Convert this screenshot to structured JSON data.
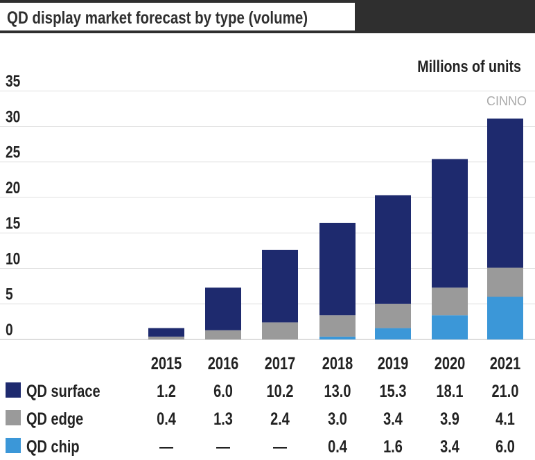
{
  "chart_data": {
    "type": "bar",
    "stacked": true,
    "title": "QD display market forecast by type (volume)",
    "unit_label": "Millions of units",
    "categories": [
      "2015",
      "2016",
      "2017",
      "2018",
      "2019",
      "2020",
      "2021"
    ],
    "yticks": [
      0,
      5,
      10,
      15,
      20,
      25,
      30,
      35
    ],
    "ylim": [
      0,
      35
    ],
    "grid": true,
    "series": [
      {
        "name": "QD chip",
        "color": "#3b97d8",
        "values": [
          0,
          0,
          0,
          0.4,
          1.6,
          3.4,
          6.0
        ],
        "labels": [
          "—",
          "—",
          "—",
          "0.4",
          "1.6",
          "3.4",
          "6.0"
        ]
      },
      {
        "name": "QD edge",
        "color": "#9a9a9a",
        "values": [
          0.4,
          1.3,
          2.4,
          3.0,
          3.4,
          3.9,
          4.1
        ],
        "labels": [
          "0.4",
          "1.3",
          "2.4",
          "3.0",
          "3.4",
          "3.9",
          "4.1"
        ]
      },
      {
        "name": "QD surface",
        "color": "#1e2a6e",
        "values": [
          1.2,
          6.0,
          10.2,
          13.0,
          15.3,
          18.1,
          21.0
        ],
        "labels": [
          "1.2",
          "6.0",
          "10.2",
          "13.0",
          "15.3",
          "18.1",
          "21.0"
        ]
      }
    ],
    "table_order": [
      "QD surface",
      "QD edge",
      "QD chip"
    ]
  },
  "watermark": "CINNO"
}
